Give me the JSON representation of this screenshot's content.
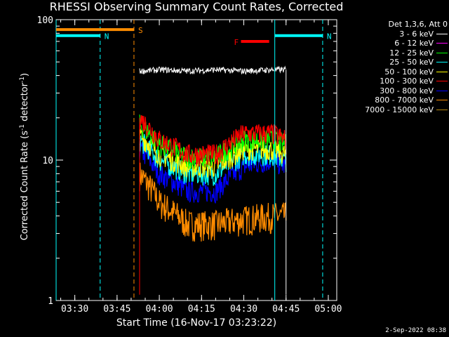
{
  "chart_data": {
    "type": "line",
    "title": "RHESSI Observing Summary Count Rates, Corrected",
    "xlabel": "Start Time (16-Nov-17 03:23:22)",
    "ylabel_main": "Corrected Count Rate (s",
    "ylabel_sup1": "-1",
    "ylabel_mid": " detector",
    "ylabel_sup2": "-1",
    "ylabel_end": ")",
    "yscale": "log",
    "ylim": [
      1,
      100
    ],
    "xlim": [
      "03:23:22",
      "05:03:00"
    ],
    "x_ticks": [
      "03:30",
      "03:45",
      "04:00",
      "04:15",
      "04:30",
      "04:45",
      "05:00"
    ],
    "y_ticks": [
      "1",
      "10",
      "100"
    ],
    "legend_header": "Det 1,3,6, Att 0",
    "series": [
      {
        "name": "3 - 6 keV",
        "color": "#ffffff",
        "x": [
          "03:53",
          "04:01",
          "04:10",
          "04:20",
          "04:30",
          "04:40",
          "04:45"
        ],
        "y": [
          43,
          44,
          43,
          44,
          43,
          44,
          44
        ]
      },
      {
        "name": "6 - 12 keV",
        "color": "#ff00ff",
        "x": [],
        "y": []
      },
      {
        "name": "12 - 25 keV",
        "color": "#00ff00",
        "x": [
          "03:53",
          "04:00",
          "04:10",
          "04:20",
          "04:30",
          "04:40",
          "04:45"
        ],
        "y": [
          18,
          13,
          10.5,
          10.5,
          14,
          14,
          13
        ]
      },
      {
        "name": "25 - 50 keV",
        "color": "#00ffff",
        "x": [
          "03:53",
          "04:00",
          "04:10",
          "04:20",
          "04:30",
          "04:40",
          "04:45"
        ],
        "y": [
          14,
          10,
          8,
          8,
          11,
          11,
          10
        ]
      },
      {
        "name": "50 - 100 keV",
        "color": "#ffff00",
        "x": [
          "03:53",
          "04:00",
          "04:10",
          "04:20",
          "04:30",
          "04:40",
          "04:45"
        ],
        "y": [
          15,
          11,
          9,
          9,
          12,
          12,
          11
        ]
      },
      {
        "name": "100 - 300 keV",
        "color": "#ff0000",
        "x": [
          "03:53",
          "04:00",
          "04:10",
          "04:20",
          "04:30",
          "04:40",
          "04:45"
        ],
        "y": [
          20,
          14,
          11,
          11,
          15.5,
          15.5,
          14
        ]
      },
      {
        "name": "300 - 800 keV",
        "color": "#0000ff",
        "x": [
          "03:53",
          "04:00",
          "04:10",
          "04:20",
          "04:30",
          "04:40",
          "04:45"
        ],
        "y": [
          12,
          8,
          6,
          6,
          9,
          10,
          9
        ]
      },
      {
        "name": "800 - 7000 keV",
        "color": "#ff8c00",
        "x": [
          "03:53",
          "04:00",
          "04:10",
          "04:20",
          "04:30",
          "04:40",
          "04:45"
        ],
        "y": [
          8,
          5,
          3.5,
          3.5,
          3.8,
          4,
          4
        ]
      },
      {
        "name": "7000 - 15000 keV",
        "color": "#b8860b",
        "x": [],
        "y": []
      }
    ],
    "flags": [
      {
        "label": "S",
        "color": "#ff8c00",
        "start": "03:23:22",
        "end": "03:51",
        "y": 85,
        "marker": "03:51"
      },
      {
        "label": "N",
        "color": "#00ffff",
        "start": "03:23:22",
        "end": "03:39",
        "y": 77,
        "marker": "03:39"
      },
      {
        "label": "N",
        "color": "#00ffff",
        "start": "04:41",
        "end": "04:58",
        "y": 77,
        "marker": "04:58"
      },
      {
        "label": "F",
        "color": "#ff0000",
        "start": "04:29",
        "end": "04:39",
        "y": 70,
        "marker": ""
      }
    ],
    "dashed_lines": [
      {
        "x": "03:39",
        "color": "#00ffff"
      },
      {
        "x": "03:51",
        "color": "#ff8c00"
      },
      {
        "x": "04:58",
        "color": "#00ffff"
      }
    ],
    "solid_lines": [
      {
        "x": "03:23:22",
        "color": "#00ffff"
      },
      {
        "x": "04:41",
        "color": "#00ffff"
      }
    ]
  },
  "footer": {
    "datestamp": "2-Sep-2022 08:38"
  }
}
